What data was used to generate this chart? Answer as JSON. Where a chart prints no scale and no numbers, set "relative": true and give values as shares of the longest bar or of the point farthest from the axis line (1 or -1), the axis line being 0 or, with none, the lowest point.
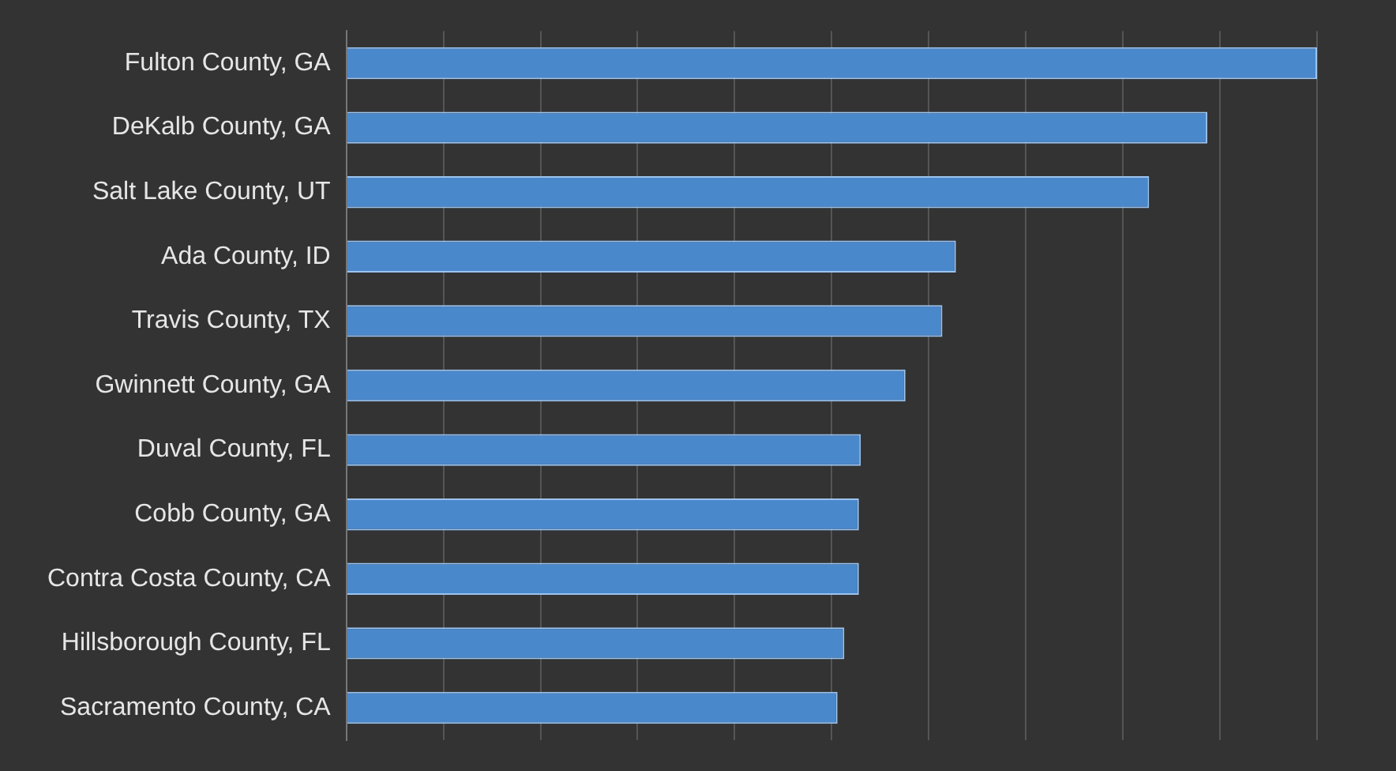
{
  "chart_data": {
    "type": "bar",
    "orientation": "horizontal",
    "relative": true,
    "grid": "x",
    "categories": [
      "Fulton County, GA",
      "DeKalb County, GA",
      "Salt Lake County, UT",
      "Ada County, ID",
      "Travis County, TX",
      "Gwinnett County, GA",
      "Duval County, FL",
      "Cobb County, GA",
      "Contra Costa County, CA",
      "Hillsborough County, FL",
      "Sacramento County, CA"
    ],
    "values": [
      1,
      0.887,
      0.827,
      0.628,
      0.614,
      0.576,
      0.53,
      0.528,
      0.528,
      0.513,
      0.506
    ],
    "color": "#4a88cc"
  }
}
